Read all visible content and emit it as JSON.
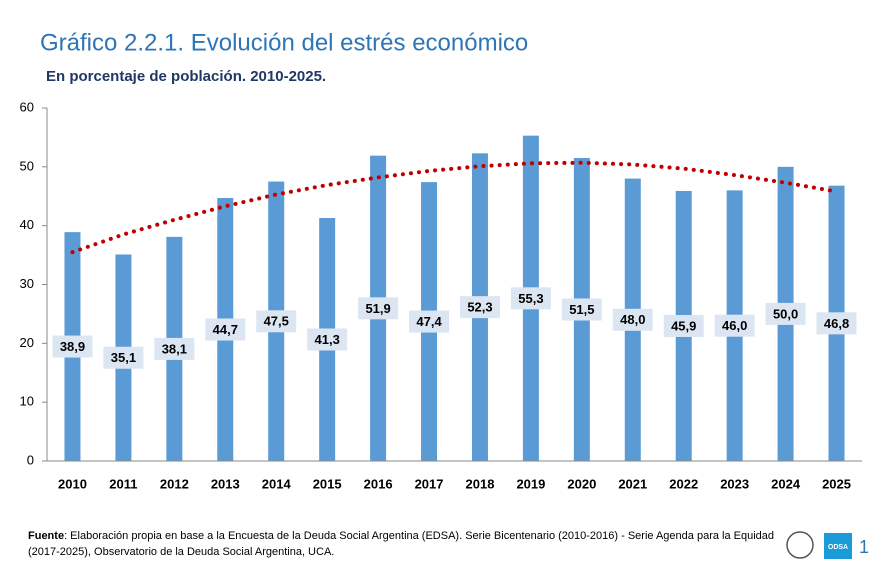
{
  "chart_data": {
    "type": "bar",
    "title": "Gráfico 2.2.1. Evolución del estrés económico",
    "subtitle": "En porcentaje de población. 2010-2025.",
    "categories": [
      "2010",
      "2011",
      "2012",
      "2013",
      "2014",
      "2015",
      "2016",
      "2017",
      "2018",
      "2019",
      "2020",
      "2021",
      "2022",
      "2023",
      "2024",
      "2025"
    ],
    "values": [
      38.9,
      35.1,
      38.1,
      44.7,
      47.5,
      41.3,
      51.9,
      47.4,
      52.3,
      55.3,
      51.5,
      48.0,
      45.9,
      46.0,
      50.0,
      46.8
    ],
    "value_labels": [
      "38,9",
      "35,1",
      "38,1",
      "44,7",
      "47,5",
      "41,3",
      "51,9",
      "47,4",
      "52,3",
      "55,3",
      "51,5",
      "48,0",
      "45,9",
      "46,0",
      "50,0",
      "46,8"
    ],
    "color": "#5b9bd5",
    "trend": {
      "values": [
        35.5,
        38.5,
        41.0,
        43.3,
        45.3,
        46.9,
        48.2,
        49.3,
        50.1,
        50.6,
        50.7,
        50.4,
        49.7,
        48.6,
        47.3,
        45.8
      ],
      "color": "#c00000"
    },
    "ylim": [
      0,
      60
    ],
    "yticks": [
      0,
      10,
      20,
      30,
      40,
      50,
      60
    ],
    "grid": false
  },
  "footer": {
    "source_label": "Fuente",
    "source_text": ": Elaboración propia en base a la Encuesta de la Deuda Social Argentina (EDSA). Serie Bicentenario (2010-2016) - Serie Agenda para la Equidad (2017-2025), Observatorio de la Deuda Social Argentina, UCA.",
    "logo_text": "ODSA",
    "page_number": "1"
  }
}
